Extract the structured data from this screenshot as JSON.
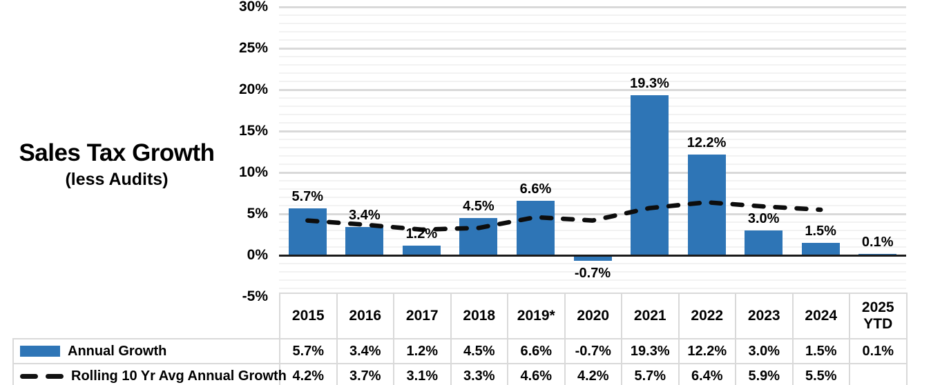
{
  "title": {
    "main": "Sales Tax Growth",
    "sub": "(less Audits)"
  },
  "colors": {
    "bar": "#2E75B6",
    "line": "#0D0D0D",
    "grid_major": "#D9D9D9",
    "grid_minor": "#F2F2F2",
    "axis": "#1A1A1A",
    "table_border": "#D9D9D9"
  },
  "chart_data": {
    "type": "bar",
    "combo": "bar + dashed rolling-average line",
    "title": "Sales Tax Growth (less Audits)",
    "categories": [
      "2015",
      "2016",
      "2017",
      "2018",
      "2019*",
      "2020",
      "2021",
      "2022",
      "2023",
      "2024",
      "2025 YTD"
    ],
    "series": [
      {
        "name": "Annual Growth",
        "type": "bar",
        "color": "#2E75B6",
        "values": [
          5.7,
          3.4,
          1.2,
          4.5,
          6.6,
          -0.7,
          19.3,
          12.2,
          3.0,
          1.5,
          0.1
        ],
        "labels": [
          "5.7%",
          "3.4%",
          "1.2%",
          "4.5%",
          "6.6%",
          "-0.7%",
          "19.3%",
          "12.2%",
          "3.0%",
          "1.5%",
          "0.1%"
        ]
      },
      {
        "name": "Rolling 10 Yr Avg Annual Growth",
        "type": "dashed-line",
        "color": "#0D0D0D",
        "values": [
          4.2,
          3.7,
          3.1,
          3.3,
          4.6,
          4.2,
          5.7,
          6.4,
          5.9,
          5.5,
          null
        ],
        "labels": [
          "4.2%",
          "3.7%",
          "3.1%",
          "3.3%",
          "4.6%",
          "4.2%",
          "5.7%",
          "6.4%",
          "5.9%",
          "5.5%",
          ""
        ]
      }
    ],
    "ylim": [
      -5,
      30
    ],
    "y_ticks": [
      30,
      25,
      20,
      15,
      10,
      5,
      0,
      -5
    ],
    "y_tick_labels": [
      "30%",
      "25%",
      "20%",
      "15%",
      "10%",
      "5%",
      "0%",
      "-5%"
    ],
    "grid": {
      "major_interval_pct": 5,
      "minor_interval_pct": 1
    },
    "legend_position": "bottom-left of data table"
  },
  "table": {
    "header": [
      "2015",
      "2016",
      "2017",
      "2018",
      "2019*",
      "2020",
      "2021",
      "2022",
      "2023",
      "2024",
      "2025 YTD"
    ],
    "rows": [
      {
        "legend": "Annual Growth",
        "swatch": "bar",
        "cells": [
          "5.7%",
          "3.4%",
          "1.2%",
          "4.5%",
          "6.6%",
          "-0.7%",
          "19.3%",
          "12.2%",
          "3.0%",
          "1.5%",
          "0.1%"
        ]
      },
      {
        "legend": "Rolling 10 Yr Avg Annual Growth",
        "swatch": "dashes",
        "cells": [
          "4.2%",
          "3.7%",
          "3.1%",
          "3.3%",
          "4.6%",
          "4.2%",
          "5.7%",
          "6.4%",
          "5.9%",
          "5.5%",
          ""
        ]
      }
    ]
  }
}
